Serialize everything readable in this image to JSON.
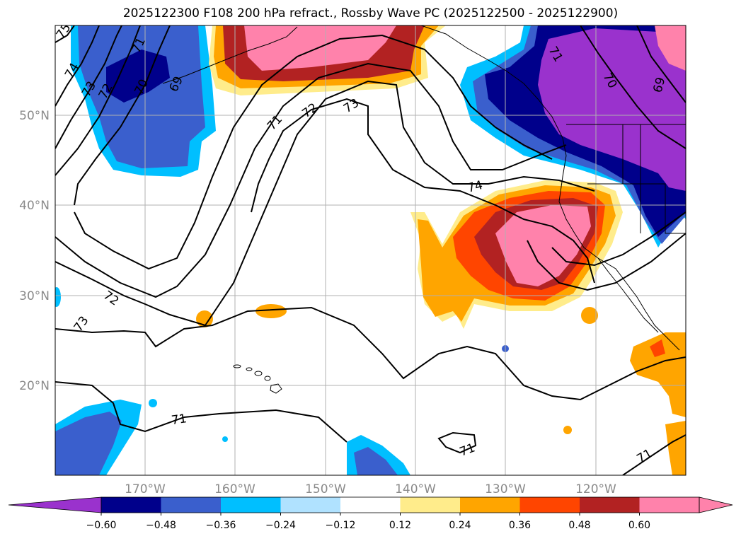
{
  "title": "2025122300 F108 200 hPa refract., Rossby Wave PC (2025122500 - 2025122900)",
  "lat_labels": [
    "50°N",
    "40°N",
    "30°N",
    "20°N"
  ],
  "lon_labels": [
    "170°W",
    "160°W",
    "150°W",
    "140°W",
    "130°W",
    "120°W"
  ],
  "contour_labels": [
    "75",
    "74",
    "73",
    "72",
    "71",
    "70",
    "69",
    "71",
    "72",
    "73",
    "74",
    "71",
    "70",
    "69",
    "72",
    "73",
    "71",
    "71",
    "71"
  ],
  "colorbar": {
    "colors": [
      "#9a32cd",
      "#00008b",
      "#3a5fcd",
      "#00bfff",
      "#b0e2ff",
      "#ffffff",
      "#ffec8b",
      "#ffa500",
      "#ff4500",
      "#b22222",
      "#ff82ab",
      "#ff82ab"
    ],
    "ticks": [
      "−0.60",
      "−0.48",
      "−0.36",
      "−0.24",
      "−0.12",
      "0.12",
      "0.24",
      "0.36",
      "0.48",
      "0.60"
    ]
  }
}
